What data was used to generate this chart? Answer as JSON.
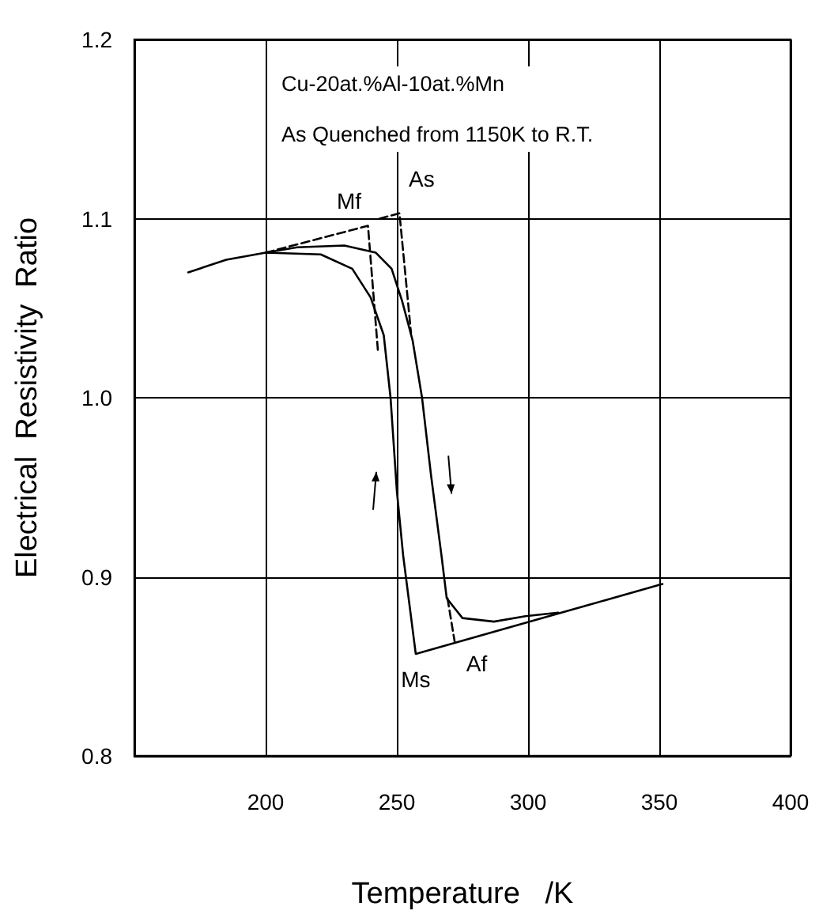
{
  "chart_data": {
    "type": "line",
    "title": "Cu-20at.%Al-10at.%Mn",
    "subtitle": "As Quenched from 1150K to R.T.",
    "xlabel": "Temperature   /K",
    "ylabel": "Electrical  Resistivity  Ratio",
    "xlim": [
      150,
      400
    ],
    "xticks": [
      200,
      250,
      300,
      350,
      400
    ],
    "ylim": [
      0.8,
      1.2
    ],
    "yticks": [
      0.8,
      0.9,
      {
        "value": 1,
        "label": "1.0"
      },
      1.1,
      1.2
    ],
    "grid": true,
    "marker": "none",
    "series": [
      {
        "color": "#000000",
        "x": [
          170.5,
          185,
          200,
          221,
          233,
          240,
          245,
          247.6,
          250,
          252.4,
          257.2,
          351.2
        ],
        "values": [
          1.07,
          1.077,
          1.081,
          1.08,
          1.072,
          1.056,
          1.035,
          1.0,
          0.948,
          0.912,
          0.857,
          0.896
        ]
      },
      {
        "color": "#000000",
        "x": [
          200,
          212,
          230,
          242,
          248,
          252,
          256,
          259.6,
          263,
          267,
          269,
          275,
          287,
          299,
          311.5
        ],
        "values": [
          1.081,
          1.084,
          1.085,
          1.081,
          1.072,
          1.054,
          1.032,
          1.0,
          0.957,
          0.912,
          0.888,
          0.877,
          0.875,
          0.878,
          0.88
        ]
      },
      {
        "color": "#000000",
        "line_style": "dashed",
        "x": [
          200,
          239,
          242.8
        ],
        "values": [
          1.081,
          1.096,
          1.026
        ]
      },
      {
        "color": "#000000",
        "line_style": "dashed",
        "x": [
          243.4,
          251,
          255.4
        ],
        "values": [
          1.1,
          1.103,
          1.036
        ]
      },
      {
        "color": "#000000",
        "line_style": "dashed",
        "x": [
          269.3,
          272
        ],
        "values": [
          0.888,
          0.864
        ]
      }
    ],
    "annotations": [
      {
        "text": "Mf",
        "x": 239,
        "y": 1.096
      },
      {
        "text": "As",
        "x": 251,
        "y": 1.103
      },
      {
        "text": "Ms",
        "x": 257.2,
        "y": 0.857
      },
      {
        "text": "Af",
        "x": 272,
        "y": 0.864
      }
    ]
  }
}
